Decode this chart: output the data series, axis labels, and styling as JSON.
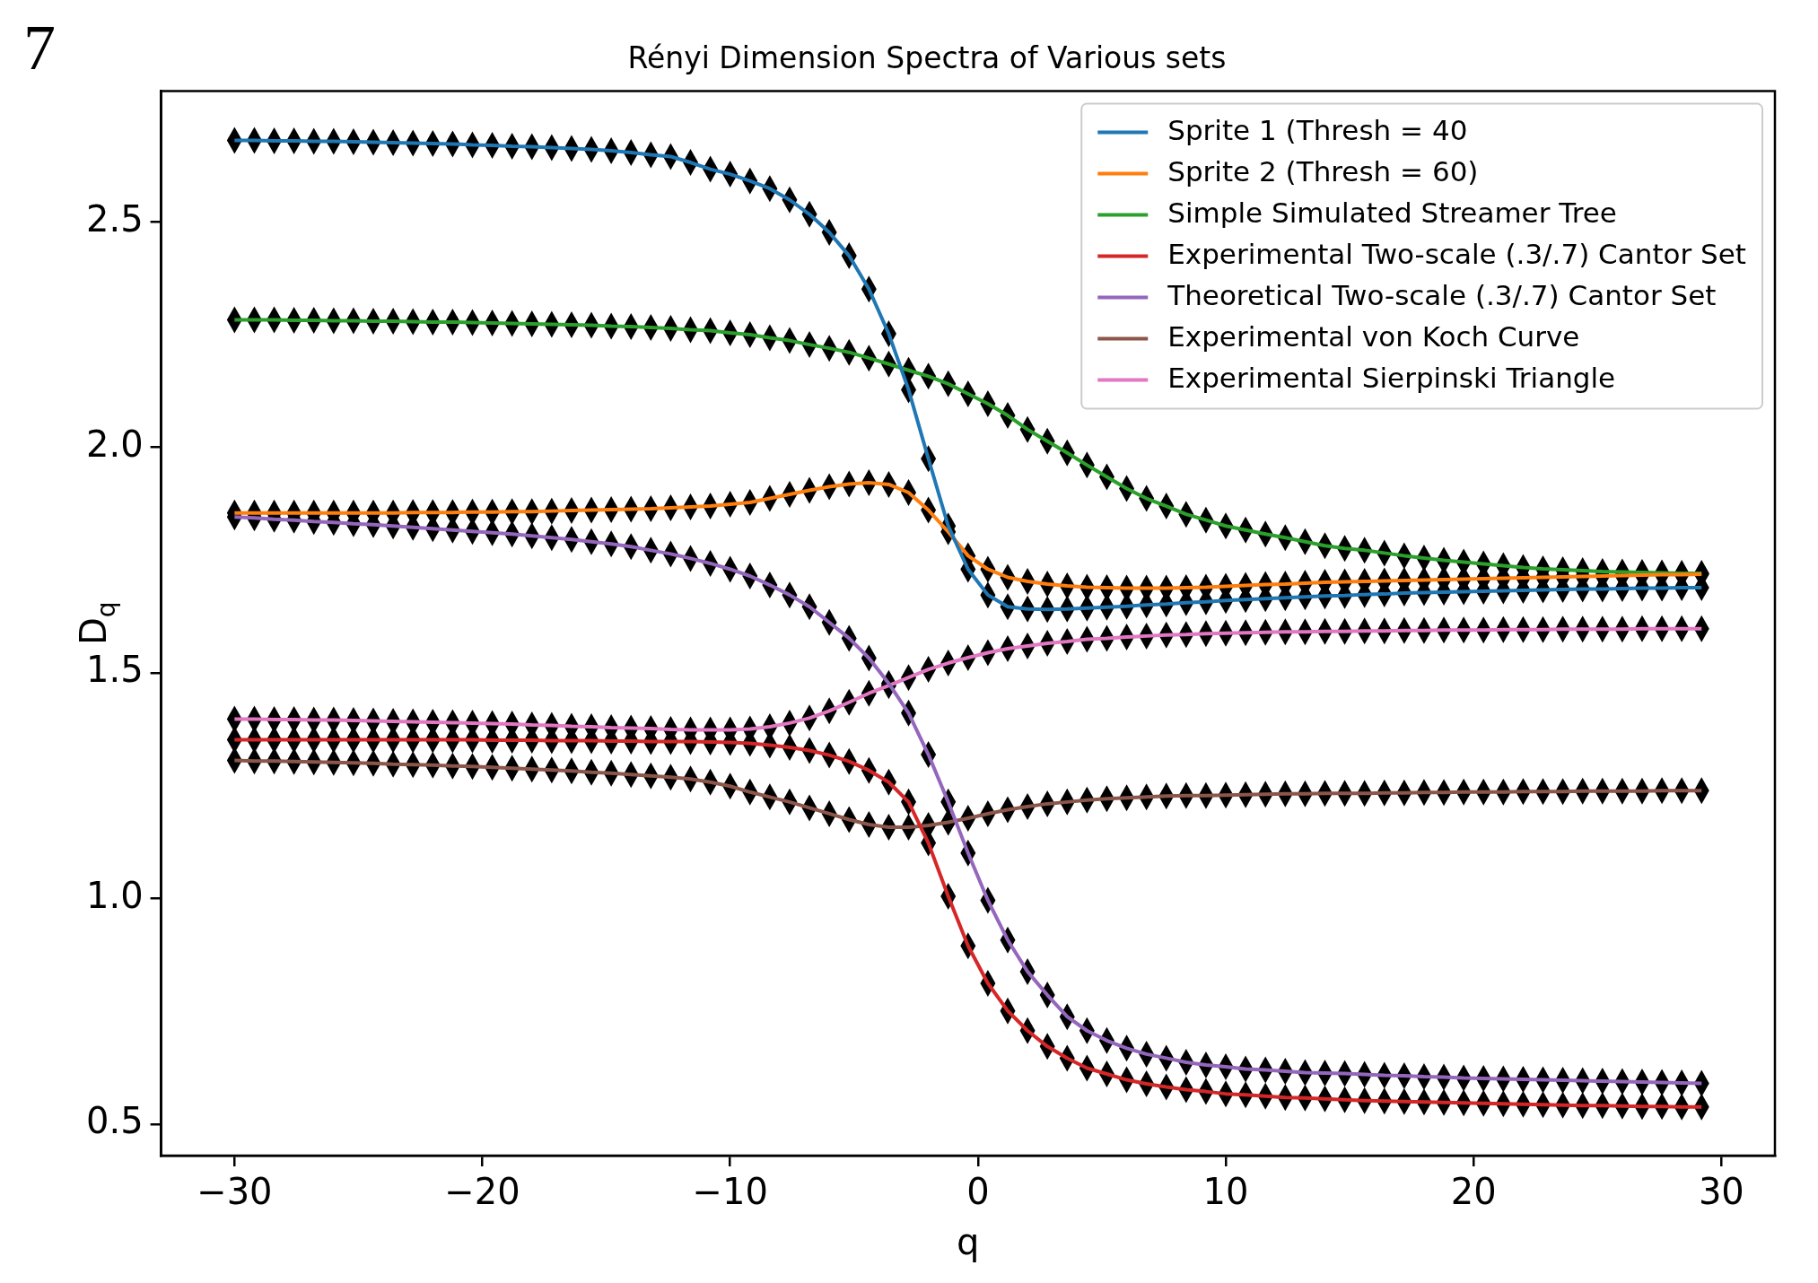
{
  "chart_data": {
    "type": "line",
    "title": "Rényi Dimension Spectra of Various sets",
    "xlabel": "q",
    "ylabel": "D$_{q}$",
    "annotations": [
      "7"
    ],
    "x": [
      -30,
      -29.2,
      -28.4,
      -27.6,
      -26.8,
      -26,
      -25.2,
      -24.4,
      -23.6,
      -22.8,
      -22,
      -21.2,
      -20.4,
      -19.6,
      -18.8,
      -18,
      -17.2,
      -16.4,
      -15.6,
      -14.8,
      -14,
      -13.2,
      -12.4,
      -11.6,
      -10.8,
      -10,
      -9.2,
      -8.4,
      -7.6,
      -6.8,
      -6,
      -5.2,
      -4.4,
      -3.6,
      -2.8,
      -2,
      -1.2,
      -0.4,
      0.4,
      1.2,
      2,
      2.8,
      3.6,
      4.4,
      5.2,
      6,
      6.8,
      7.6,
      8.4,
      9.2,
      10,
      10.8,
      11.6,
      12.4,
      13.2,
      14,
      14.8,
      15.6,
      16.4,
      17.2,
      18,
      18.8,
      19.6,
      20.4,
      21.2,
      22,
      22.8,
      23.6,
      24.4,
      25.2,
      26,
      26.8,
      27.6,
      28.4,
      29.2
    ],
    "series": [
      {
        "name": "Sprite 1 (Thresh = 40",
        "color": "#1f77b4",
        "values": [
          2.681,
          2.681,
          2.68,
          2.68,
          2.679,
          2.679,
          2.678,
          2.677,
          2.676,
          2.675,
          2.674,
          2.673,
          2.671,
          2.67,
          2.668,
          2.667,
          2.665,
          2.663,
          2.661,
          2.658,
          2.654,
          2.649,
          2.645,
          2.632,
          2.617,
          2.606,
          2.591,
          2.574,
          2.549,
          2.517,
          2.477,
          2.425,
          2.351,
          2.252,
          2.128,
          1.975,
          1.826,
          1.73,
          1.673,
          1.647,
          1.642,
          1.641,
          1.642,
          1.644,
          1.646,
          1.648,
          1.651,
          1.653,
          1.656,
          1.658,
          1.661,
          1.663,
          1.665,
          1.667,
          1.669,
          1.671,
          1.672,
          1.674,
          1.675,
          1.677,
          1.678,
          1.679,
          1.68,
          1.681,
          1.682,
          1.683,
          1.684,
          1.685,
          1.686,
          1.686,
          1.687,
          1.688,
          1.688,
          1.689,
          1.689
        ]
      },
      {
        "name": "Sprite 2 (Thresh = 60)",
        "color": "#ff7f0e",
        "values": [
          1.855,
          1.855,
          1.855,
          1.855,
          1.855,
          1.855,
          1.855,
          1.855,
          1.855,
          1.856,
          1.856,
          1.856,
          1.857,
          1.857,
          1.858,
          1.858,
          1.859,
          1.86,
          1.861,
          1.862,
          1.863,
          1.864,
          1.866,
          1.868,
          1.87,
          1.874,
          1.878,
          1.887,
          1.896,
          1.905,
          1.913,
          1.919,
          1.922,
          1.918,
          1.9,
          1.861,
          1.813,
          1.76,
          1.73,
          1.712,
          1.703,
          1.697,
          1.693,
          1.69,
          1.689,
          1.688,
          1.688,
          1.688,
          1.689,
          1.69,
          1.692,
          1.694,
          1.696,
          1.697,
          1.699,
          1.701,
          1.702,
          1.703,
          1.704,
          1.705,
          1.706,
          1.707,
          1.708,
          1.709,
          1.71,
          1.711,
          1.712,
          1.713,
          1.714,
          1.715,
          1.716,
          1.717,
          1.718,
          1.718,
          1.719
        ]
      },
      {
        "name": "Simple Simulated Streamer Tree",
        "color": "#2ca02c",
        "values": [
          2.283,
          2.283,
          2.283,
          2.282,
          2.282,
          2.281,
          2.281,
          2.28,
          2.28,
          2.279,
          2.278,
          2.278,
          2.277,
          2.276,
          2.275,
          2.274,
          2.273,
          2.272,
          2.271,
          2.269,
          2.268,
          2.266,
          2.264,
          2.261,
          2.259,
          2.254,
          2.25,
          2.243,
          2.237,
          2.228,
          2.22,
          2.211,
          2.198,
          2.185,
          2.171,
          2.158,
          2.141,
          2.119,
          2.097,
          2.071,
          2.04,
          2.014,
          1.988,
          1.961,
          1.935,
          1.909,
          1.887,
          1.87,
          1.852,
          1.839,
          1.826,
          1.817,
          1.808,
          1.8,
          1.791,
          1.782,
          1.776,
          1.772,
          1.766,
          1.76,
          1.755,
          1.75,
          1.746,
          1.742,
          1.738,
          1.734,
          1.731,
          1.729,
          1.727,
          1.725,
          1.724,
          1.723,
          1.722,
          1.721,
          1.721
        ]
      },
      {
        "name": "Experimental Two-scale (.3/.7) Cantor Set",
        "color": "#d62728",
        "values": [
          1.352,
          1.352,
          1.352,
          1.352,
          1.352,
          1.352,
          1.352,
          1.352,
          1.352,
          1.352,
          1.352,
          1.352,
          1.352,
          1.351,
          1.351,
          1.351,
          1.35,
          1.35,
          1.35,
          1.349,
          1.349,
          1.348,
          1.348,
          1.348,
          1.347,
          1.346,
          1.344,
          1.34,
          1.335,
          1.328,
          1.318,
          1.304,
          1.284,
          1.258,
          1.214,
          1.123,
          1.005,
          0.895,
          0.812,
          0.751,
          0.707,
          0.672,
          0.646,
          0.624,
          0.611,
          0.598,
          0.589,
          0.582,
          0.576,
          0.572,
          0.567,
          0.565,
          0.562,
          0.559,
          0.558,
          0.556,
          0.554,
          0.552,
          0.551,
          0.55,
          0.549,
          0.548,
          0.547,
          0.546,
          0.545,
          0.544,
          0.543,
          0.542,
          0.541,
          0.541,
          0.54,
          0.539,
          0.539,
          0.538,
          0.538
        ]
      },
      {
        "name": "Theoretical Two-scale (.3/.7) Cantor Set",
        "color": "#9467bd",
        "values": [
          1.846,
          1.844,
          1.841,
          1.839,
          1.836,
          1.834,
          1.831,
          1.829,
          1.826,
          1.823,
          1.82,
          1.817,
          1.814,
          1.811,
          1.808,
          1.804,
          1.8,
          1.796,
          1.791,
          1.786,
          1.78,
          1.772,
          1.764,
          1.754,
          1.743,
          1.73,
          1.715,
          1.695,
          1.673,
          1.647,
          1.612,
          1.577,
          1.533,
          1.477,
          1.411,
          1.319,
          1.214,
          1.101,
          0.996,
          0.908,
          0.838,
          0.786,
          0.738,
          0.707,
          0.685,
          0.668,
          0.655,
          0.646,
          0.637,
          0.631,
          0.627,
          0.622,
          0.62,
          0.617,
          0.614,
          0.613,
          0.612,
          0.61,
          0.608,
          0.607,
          0.605,
          0.604,
          0.602,
          0.601,
          0.6,
          0.599,
          0.598,
          0.597,
          0.596,
          0.595,
          0.594,
          0.593,
          0.592,
          0.591,
          0.59
        ]
      },
      {
        "name": "Experimental von Koch Curve",
        "color": "#8c564b",
        "values": [
          1.306,
          1.305,
          1.305,
          1.304,
          1.303,
          1.302,
          1.301,
          1.3,
          1.298,
          1.297,
          1.296,
          1.294,
          1.293,
          1.291,
          1.289,
          1.287,
          1.285,
          1.283,
          1.28,
          1.278,
          1.275,
          1.272,
          1.269,
          1.265,
          1.258,
          1.249,
          1.236,
          1.225,
          1.214,
          1.201,
          1.188,
          1.175,
          1.164,
          1.158,
          1.158,
          1.162,
          1.169,
          1.178,
          1.188,
          1.197,
          1.204,
          1.21,
          1.214,
          1.218,
          1.221,
          1.223,
          1.225,
          1.227,
          1.228,
          1.228,
          1.229,
          1.23,
          1.231,
          1.232,
          1.232,
          1.233,
          1.233,
          1.233,
          1.234,
          1.234,
          1.235,
          1.235,
          1.236,
          1.236,
          1.236,
          1.237,
          1.237,
          1.237,
          1.238,
          1.238,
          1.238,
          1.238,
          1.239,
          1.239,
          1.239
        ]
      },
      {
        "name": "Experimental Sierpinski Triangle",
        "color": "#e377c2",
        "values": [
          1.398,
          1.398,
          1.397,
          1.397,
          1.396,
          1.396,
          1.395,
          1.394,
          1.393,
          1.392,
          1.391,
          1.39,
          1.389,
          1.388,
          1.387,
          1.385,
          1.384,
          1.382,
          1.381,
          1.379,
          1.378,
          1.377,
          1.375,
          1.374,
          1.374,
          1.374,
          1.376,
          1.381,
          1.389,
          1.4,
          1.416,
          1.435,
          1.455,
          1.472,
          1.49,
          1.508,
          1.522,
          1.534,
          1.545,
          1.554,
          1.56,
          1.566,
          1.57,
          1.575,
          1.577,
          1.58,
          1.582,
          1.584,
          1.585,
          1.587,
          1.588,
          1.589,
          1.59,
          1.591,
          1.591,
          1.592,
          1.592,
          1.593,
          1.593,
          1.594,
          1.594,
          1.595,
          1.595,
          1.595,
          1.596,
          1.596,
          1.596,
          1.597,
          1.597,
          1.597,
          1.597,
          1.598,
          1.598,
          1.598,
          1.598
        ]
      }
    ],
    "xlim": [
      -32.96,
      32.16
    ],
    "xticks": [
      {
        "value": -30,
        "label": "−30"
      },
      {
        "value": -20,
        "label": "−20"
      },
      {
        "value": -10,
        "label": "−10"
      },
      0,
      10,
      20,
      30
    ],
    "ylim": [
      0.43,
      2.79
    ],
    "yticks": [
      0.5,
      {
        "value": 1,
        "label": "1.0"
      },
      1.5,
      {
        "value": 2,
        "label": "2.0"
      },
      2.5
    ],
    "marker": "diamond",
    "line_style": "solid",
    "legend": "top right"
  }
}
